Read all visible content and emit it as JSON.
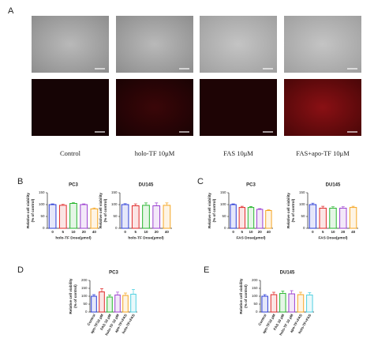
{
  "panel_labels": [
    "A",
    "B",
    "C",
    "D",
    "E"
  ],
  "image_labels": [
    "Control",
    "holo-TF 10μM",
    "FAS 10μM",
    "FAS+apo-TF 10μM"
  ],
  "chart_data": [
    {
      "type": "bar",
      "title": "PC3",
      "categories": [
        "0",
        "5",
        "10",
        "20",
        "40"
      ],
      "values": [
        100,
        97,
        105,
        100,
        82
      ],
      "errors": [
        3,
        4,
        4,
        3,
        4
      ],
      "colors": [
        "#2a3bd6",
        "#e02a2a",
        "#27b52e",
        "#9b3fd0",
        "#f5a623"
      ],
      "xlabel": "holo-TF Dose(μmol)",
      "ylabel": [
        "Relative cell viability",
        "(% of control)"
      ],
      "ylim": [
        0,
        150
      ],
      "yticks": [
        0,
        50,
        100,
        150
      ]
    },
    {
      "type": "bar",
      "title": "DU145",
      "categories": [
        "0",
        "5",
        "10",
        "20",
        "40"
      ],
      "values": [
        100,
        95,
        97,
        95,
        97
      ],
      "errors": [
        4,
        8,
        10,
        12,
        10
      ],
      "colors": [
        "#2a3bd6",
        "#e02a2a",
        "#27b52e",
        "#9b3fd0",
        "#f5a623"
      ],
      "xlabel": "holo-TF Dose(μmol)",
      "ylabel": [
        "Relative cell viability",
        "(% of control)"
      ],
      "ylim": [
        0,
        150
      ],
      "yticks": [
        0,
        50,
        100,
        150
      ]
    },
    {
      "type": "bar",
      "title": "PC3",
      "categories": [
        "0",
        "5",
        "10",
        "20",
        "40"
      ],
      "values": [
        100,
        88,
        88,
        80,
        75
      ],
      "errors": [
        3,
        5,
        4,
        3,
        3
      ],
      "colors": [
        "#2a3bd6",
        "#e02a2a",
        "#27b52e",
        "#9b3fd0",
        "#f5a623"
      ],
      "xlabel": "FAS Dose(μmol)",
      "ylabel": [
        "Relative cell viability",
        "(% of control)"
      ],
      "ylim": [
        0,
        150
      ],
      "yticks": [
        0,
        50,
        100,
        150
      ]
    },
    {
      "type": "bar",
      "title": "DU145",
      "categories": [
        "0",
        "5",
        "10",
        "20",
        "40"
      ],
      "values": [
        100,
        85,
        85,
        85,
        88
      ],
      "errors": [
        6,
        8,
        6,
        6,
        5
      ],
      "colors": [
        "#2a3bd6",
        "#e02a2a",
        "#27b52e",
        "#9b3fd0",
        "#f5a623"
      ],
      "xlabel": "FAS Dose(μmol)",
      "ylabel": [
        "Relative cell viability",
        "(% of control)"
      ],
      "ylim": [
        0,
        150
      ],
      "yticks": [
        0,
        50,
        100,
        150
      ]
    },
    {
      "type": "bar",
      "title": "PC3",
      "categories": [
        "Control",
        "apo-TF10 μM",
        "FAS 10 μM",
        "holo-TF 10 μM",
        "apo-TF+FAS",
        "holo-TF+FAS"
      ],
      "values": [
        100,
        128,
        95,
        108,
        105,
        113
      ],
      "errors": [
        10,
        20,
        12,
        18,
        15,
        30
      ],
      "colors": [
        "#2a3bd6",
        "#e02a2a",
        "#27b52e",
        "#9b3fd0",
        "#f5a623",
        "#4fd0e0"
      ],
      "ylabel": [
        "Relative cell viability",
        "(% of control)"
      ],
      "ylim": [
        0,
        200
      ],
      "yticks": [
        0,
        50,
        100,
        150,
        200
      ]
    },
    {
      "type": "bar",
      "title": "DU145",
      "categories": [
        "Control",
        "apo-TF10 μM",
        "FAS 10 μM",
        "holo-TF 10 μM",
        "apo-TF+FAS",
        "holo-TF+FAS"
      ],
      "values": [
        100,
        110,
        118,
        115,
        110,
        108
      ],
      "errors": [
        10,
        15,
        15,
        20,
        15,
        15
      ],
      "colors": [
        "#2a3bd6",
        "#e02a2a",
        "#27b52e",
        "#9b3fd0",
        "#f5a623",
        "#4fd0e0"
      ],
      "ylabel": [
        "Relative cell viability",
        "(% of control)"
      ],
      "ylim": [
        0,
        200
      ],
      "yticks": [
        0,
        50,
        100,
        150,
        200
      ]
    }
  ]
}
